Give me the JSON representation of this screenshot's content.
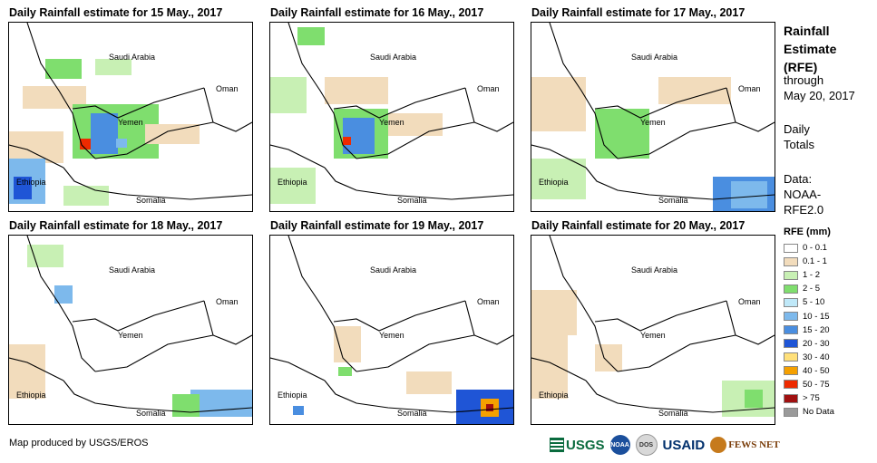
{
  "panels": [
    {
      "title": "Daily Rainfall estimate for 15 May., 2017"
    },
    {
      "title": "Daily Rainfall estimate for 16 May., 2017"
    },
    {
      "title": "Daily Rainfall estimate for 17 May., 2017"
    },
    {
      "title": "Daily Rainfall estimate for 18 May., 2017"
    },
    {
      "title": "Daily Rainfall estimate for 19 May., 2017"
    },
    {
      "title": "Daily Rainfall estimate for 20 May., 2017"
    }
  ],
  "map_labels": {
    "saudi": "Saudi Arabia",
    "oman": "Oman",
    "yemen": "Yemen",
    "ethiopia": "Ethiopia",
    "somalia": "Somalia"
  },
  "sidebar": {
    "title_line1": "Rainfall",
    "title_line2": "Estimate",
    "title_line3": "(RFE)",
    "through": "through",
    "date": "May 20, 2017",
    "daily1": "Daily",
    "daily2": "Totals",
    "data_label": "Data:",
    "data_src1": "NOAA-",
    "data_src2": "RFE2.0"
  },
  "legend": {
    "title": "RFE (mm)",
    "items": [
      {
        "label": "0 - 0.1",
        "color": "#ffffff"
      },
      {
        "label": "0.1 - 1",
        "color": "#f2dcbc"
      },
      {
        "label": "1 - 2",
        "color": "#c8f0b4"
      },
      {
        "label": "2 - 5",
        "color": "#7fde6e"
      },
      {
        "label": "5 - 10",
        "color": "#bfe8f8"
      },
      {
        "label": "10 - 15",
        "color": "#7db9ec"
      },
      {
        "label": "15 - 20",
        "color": "#4a8ee0"
      },
      {
        "label": "20 - 30",
        "color": "#1f55d6"
      },
      {
        "label": "30 - 40",
        "color": "#ffe07a"
      },
      {
        "label": "40 - 50",
        "color": "#f5a000"
      },
      {
        "label": "50 - 75",
        "color": "#ee2a00"
      },
      {
        "label": "> 75",
        "color": "#a01010"
      },
      {
        "label": "No Data",
        "color": "#9a9a9a"
      }
    ]
  },
  "footer": {
    "credit": "Map produced by USGS/EROS",
    "logo_usgs": "USGS",
    "logo_noaa": "NOAA",
    "logo_dos": "DOS",
    "logo_usaid": "USAID",
    "logo_fews": "FEWS NET"
  }
}
